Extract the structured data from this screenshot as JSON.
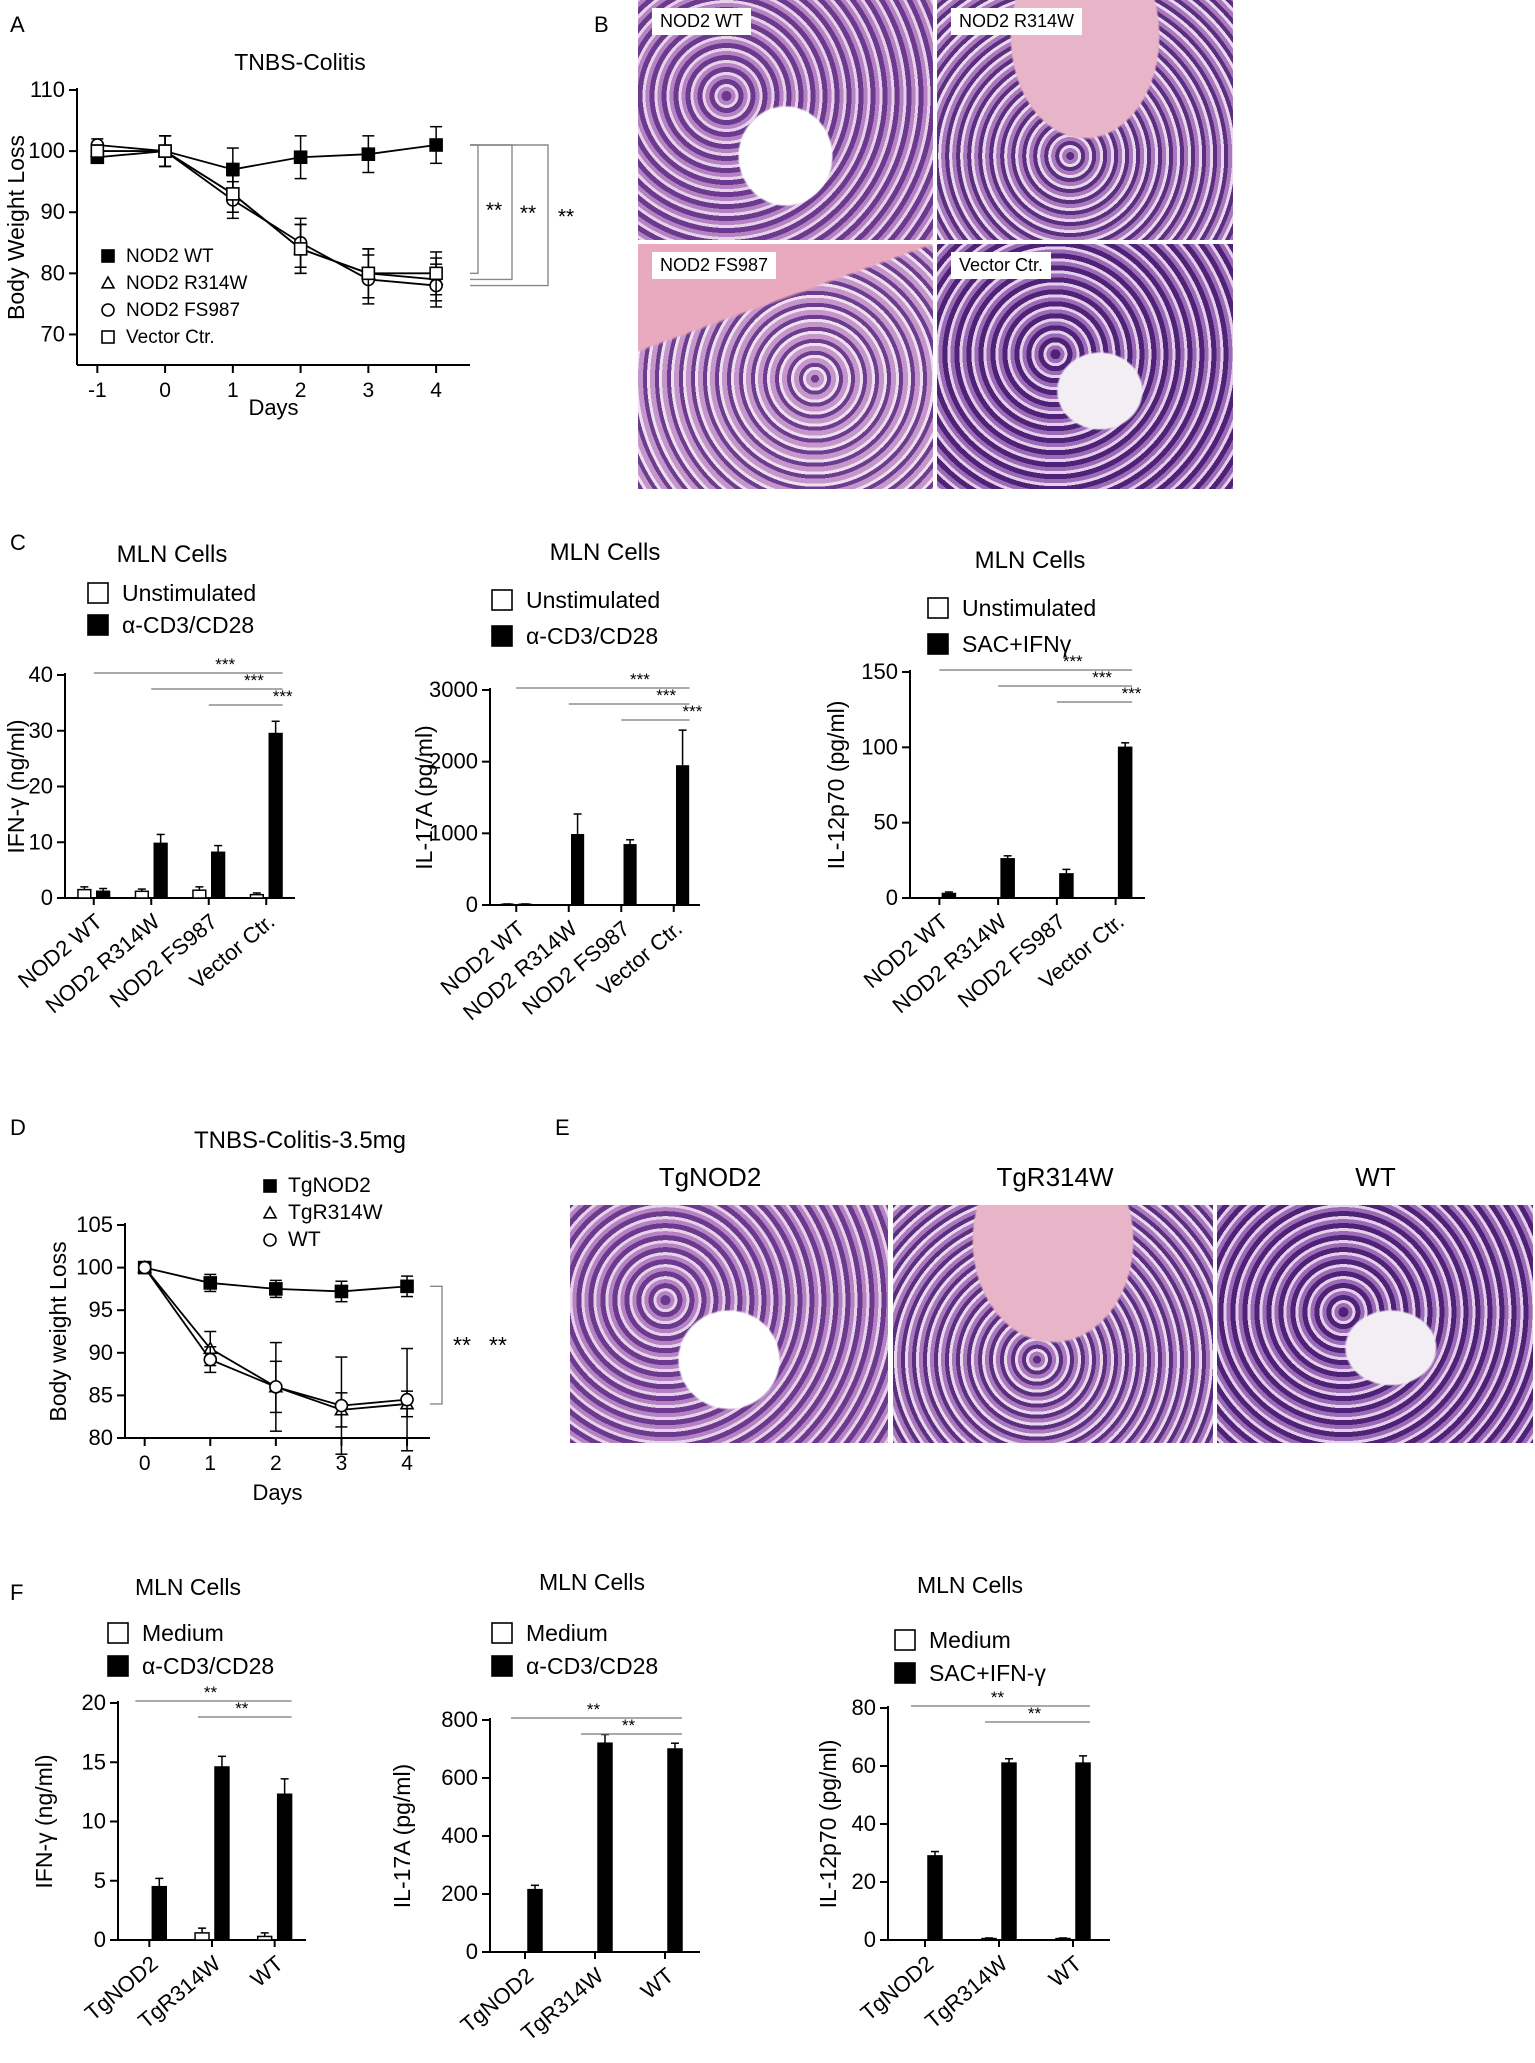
{
  "panel_letters": {
    "A": "A",
    "B": "B",
    "C": "C",
    "D": "D",
    "E": "E",
    "F": "F"
  },
  "histology_B": [
    "NOD2 WT",
    "NOD2 R314W",
    "NOD2 FS987",
    "Vector Ctr."
  ],
  "histology_E": [
    "TgNOD2",
    "TgR314W",
    "WT"
  ],
  "chart_data": [
    {
      "id": "A",
      "type": "line",
      "title": "TNBS-Colitis",
      "xlabel": "Days",
      "ylabel": "Body Weight Loss",
      "x": [
        -1,
        0,
        1,
        2,
        3,
        4
      ],
      "xticks": [
        "-1",
        "0",
        "1",
        "2",
        "3",
        "4"
      ],
      "yticks": [
        "70",
        "80",
        "90",
        "100",
        "110"
      ],
      "ylim": [
        65,
        110
      ],
      "legend": "bottom-left",
      "significance": [
        "**",
        "**",
        "**"
      ],
      "series": [
        {
          "name": "NOD2 WT",
          "marker": "square-filled",
          "values": [
            99,
            100,
            97,
            99,
            99.5,
            101
          ],
          "err": [
            1,
            2.5,
            3.5,
            3.5,
            3,
            3
          ]
        },
        {
          "name": "NOD2 R314W",
          "marker": "triangle-open",
          "values": [
            100,
            100,
            93,
            84,
            80,
            79
          ],
          "err": [
            1,
            2.5,
            3,
            4,
            4,
            3.5
          ]
        },
        {
          "name": "NOD2 FS987",
          "marker": "circle-open",
          "values": [
            101,
            100,
            92,
            85,
            79,
            78
          ],
          "err": [
            1,
            2.5,
            3,
            4,
            4,
            3.5
          ]
        },
        {
          "name": "Vector Ctr.",
          "marker": "square-open",
          "values": [
            100,
            100,
            93,
            84,
            80,
            80
          ],
          "err": [
            1,
            2.5,
            3,
            4,
            4,
            3.5
          ]
        }
      ]
    },
    {
      "id": "C1",
      "type": "bar",
      "title": "MLN Cells",
      "ylabel": "IFN-γ (ng/ml)",
      "categories": [
        "NOD2 WT",
        "NOD2 R314W",
        "NOD2 FS987",
        "Vector Ctr."
      ],
      "yticks": [
        "0",
        "10",
        "20",
        "30",
        "40"
      ],
      "ylim": [
        0,
        40
      ],
      "legend": "top-left",
      "significance": [
        "***",
        "***",
        "***"
      ],
      "series": [
        {
          "name": "Unstimulated",
          "values": [
            1.5,
            1.2,
            1.4,
            0.6
          ],
          "err": [
            0.5,
            0.4,
            0.6,
            0.3
          ]
        },
        {
          "name": "α-CD3/CD28",
          "values": [
            1.2,
            9.8,
            8.2,
            29.5
          ],
          "err": [
            0.5,
            1.6,
            1.2,
            2.2
          ]
        }
      ]
    },
    {
      "id": "C2",
      "type": "bar",
      "title": "MLN Cells",
      "ylabel": "IL-17A (pg/ml)",
      "categories": [
        "NOD2 WT",
        "NOD2 R314W",
        "NOD2 FS987",
        "Vector Ctr."
      ],
      "yticks": [
        "0",
        "1000",
        "2000",
        "3000"
      ],
      "ylim": [
        0,
        3000
      ],
      "legend": "top-left",
      "significance": [
        "***",
        "***",
        "***"
      ],
      "series": [
        {
          "name": "Unstimulated",
          "values": [
            10,
            0,
            0,
            0
          ],
          "err": [
            5,
            0,
            0,
            0
          ]
        },
        {
          "name": "α-CD3/CD28",
          "values": [
            10,
            980,
            840,
            1940
          ],
          "err": [
            5,
            290,
            70,
            500
          ]
        }
      ]
    },
    {
      "id": "C3",
      "type": "bar",
      "title": "MLN Cells",
      "ylabel": "IL-12p70 (pg/ml)",
      "categories": [
        "NOD2 WT",
        "NOD2 R314W",
        "NOD2 FS987",
        "Vector Ctr."
      ],
      "yticks": [
        "0",
        "50",
        "100",
        "150"
      ],
      "ylim": [
        0,
        150
      ],
      "legend": "top-left",
      "significance": [
        "***",
        "***",
        "***"
      ],
      "series": [
        {
          "name": "Unstimulated",
          "values": [
            0,
            0,
            0,
            0
          ],
          "err": [
            0,
            0,
            0,
            0
          ]
        },
        {
          "name": "SAC+IFNγ",
          "values": [
            3,
            26,
            16,
            100
          ],
          "err": [
            1,
            2,
            3,
            3
          ]
        }
      ]
    },
    {
      "id": "D",
      "type": "line",
      "title": "TNBS-Colitis-3.5mg",
      "xlabel": "Days",
      "ylabel": "Body weight Loss",
      "x": [
        0,
        1,
        2,
        3,
        4
      ],
      "xticks": [
        "0",
        "1",
        "2",
        "3",
        "4"
      ],
      "yticks": [
        "80",
        "85",
        "90",
        "95",
        "100",
        "105"
      ],
      "ylim": [
        80,
        105
      ],
      "legend": "top",
      "significance": [
        "**",
        "**"
      ],
      "series": [
        {
          "name": "TgNOD2",
          "marker": "square-filled",
          "values": [
            100,
            98.2,
            97.5,
            97.2,
            97.8
          ],
          "err": [
            0.4,
            1,
            1,
            1.2,
            1.2
          ]
        },
        {
          "name": "TgR314W",
          "marker": "triangle-open",
          "values": [
            100,
            90.5,
            86,
            83.3,
            84
          ],
          "err": [
            0.4,
            2,
            3,
            2,
            1.5
          ]
        },
        {
          "name": "WT",
          "marker": "circle-open",
          "values": [
            100,
            89.2,
            86,
            83.8,
            84.5
          ],
          "err": [
            0.4,
            1.5,
            5.2,
            5.7,
            6
          ]
        }
      ]
    },
    {
      "id": "F1",
      "type": "bar",
      "title": "MLN Cells",
      "ylabel": "IFN-γ (ng/ml)",
      "categories": [
        "TgNOD2",
        "TgR314W",
        "WT"
      ],
      "yticks": [
        "0",
        "5",
        "10",
        "15",
        "20"
      ],
      "ylim": [
        0,
        20
      ],
      "legend": "top-left",
      "significance": [
        "**",
        "**"
      ],
      "series": [
        {
          "name": "Medium",
          "values": [
            0,
            0.6,
            0.3
          ],
          "err": [
            0,
            0.4,
            0.3
          ]
        },
        {
          "name": "α-CD3/CD28",
          "values": [
            4.5,
            14.6,
            12.3
          ],
          "err": [
            0.7,
            0.9,
            1.3
          ]
        }
      ]
    },
    {
      "id": "F2",
      "type": "bar",
      "title": "MLN Cells",
      "ylabel": "IL-17A (pg/ml)",
      "categories": [
        "TgNOD2",
        "TgR314W",
        "WT"
      ],
      "yticks": [
        "0",
        "200",
        "400",
        "600",
        "800"
      ],
      "ylim": [
        0,
        800
      ],
      "legend": "top-left",
      "significance": [
        "**",
        "**"
      ],
      "series": [
        {
          "name": "Medium",
          "values": [
            0,
            0,
            0
          ],
          "err": [
            0,
            0,
            0
          ]
        },
        {
          "name": "α-CD3/CD28",
          "values": [
            215,
            720,
            700
          ],
          "err": [
            15,
            30,
            20
          ]
        }
      ]
    },
    {
      "id": "F3",
      "type": "bar",
      "title": "MLN Cells",
      "ylabel": "IL-12p70 (pg/ml)",
      "categories": [
        "TgNOD2",
        "TgR314W",
        "WT"
      ],
      "yticks": [
        "0",
        "20",
        "40",
        "60",
        "80"
      ],
      "ylim": [
        0,
        80
      ],
      "legend": "top-left",
      "significance": [
        "**",
        "**"
      ],
      "series": [
        {
          "name": "Medium",
          "values": [
            0,
            0.5,
            0.5
          ],
          "err": [
            0,
            0.2,
            0.2
          ]
        },
        {
          "name": "SAC+IFN-γ",
          "values": [
            29,
            61,
            61
          ],
          "err": [
            1.5,
            1.5,
            2.5
          ]
        }
      ]
    }
  ]
}
